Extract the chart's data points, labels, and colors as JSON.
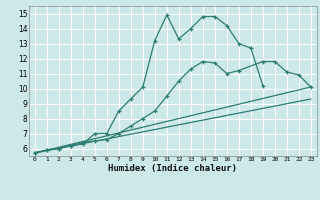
{
  "xlabel": "Humidex (Indice chaleur)",
  "xlim": [
    -0.5,
    23.5
  ],
  "ylim": [
    5.5,
    15.5
  ],
  "yticks": [
    6,
    7,
    8,
    9,
    10,
    11,
    12,
    13,
    14,
    15
  ],
  "xticks": [
    0,
    1,
    2,
    3,
    4,
    5,
    6,
    7,
    8,
    9,
    10,
    11,
    12,
    13,
    14,
    15,
    16,
    17,
    18,
    19,
    20,
    21,
    22,
    23
  ],
  "bg_color": "#cce8e8",
  "line_color": "#2e7d72",
  "grid_color": "#ffffff",
  "lines": [
    {
      "x": [
        0,
        1,
        2,
        3,
        4,
        5,
        6,
        7,
        8,
        9,
        10,
        11,
        12,
        13,
        14,
        15,
        16,
        17,
        18,
        19
      ],
      "y": [
        5.7,
        5.9,
        6.0,
        6.2,
        6.3,
        7.0,
        7.0,
        8.5,
        9.3,
        10.1,
        13.2,
        14.9,
        13.3,
        14.0,
        14.8,
        14.8,
        14.2,
        13.0,
        12.7,
        10.2
      ],
      "marker": "+"
    },
    {
      "x": [
        0,
        1,
        2,
        3,
        4,
        5,
        6,
        7,
        8,
        9,
        10,
        11,
        12,
        13,
        14,
        15,
        16,
        17,
        19,
        20,
        21,
        22,
        23
      ],
      "y": [
        5.7,
        5.9,
        6.0,
        6.2,
        6.4,
        6.5,
        6.6,
        7.0,
        7.5,
        8.0,
        8.5,
        9.5,
        10.5,
        11.3,
        11.8,
        11.7,
        11.0,
        11.2,
        11.8,
        11.8,
        11.1,
        10.9,
        10.1
      ],
      "marker": "+"
    },
    {
      "x": [
        0,
        23
      ],
      "y": [
        5.7,
        10.1
      ],
      "marker": null
    },
    {
      "x": [
        0,
        23
      ],
      "y": [
        5.7,
        9.3
      ],
      "marker": null
    }
  ]
}
